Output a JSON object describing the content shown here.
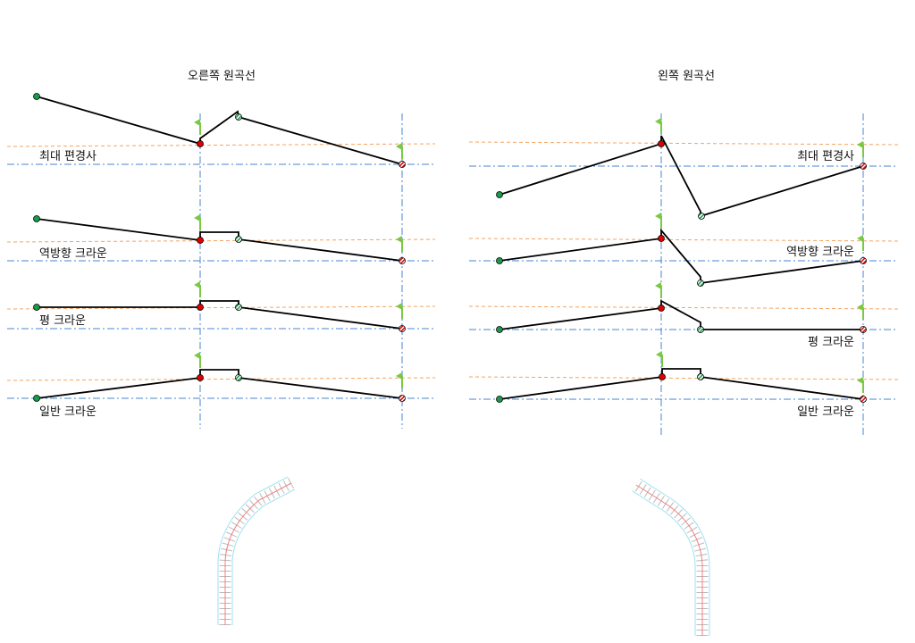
{
  "panels": [
    {
      "title": "오른쪽 원곡선",
      "rows": [
        {
          "label": "최대 편경사"
        },
        {
          "label": "역방향 크라운"
        },
        {
          "label": "평 크라운"
        },
        {
          "label": "일반 크라운"
        }
      ]
    },
    {
      "title": "왼쪽 원곡선",
      "rows": [
        {
          "label": "최대 편경사"
        },
        {
          "label": "역방향 크라운"
        },
        {
          "label": "평 크라운"
        },
        {
          "label": "일반 크라운"
        }
      ]
    }
  ],
  "colors": {
    "profile": "#000000",
    "start_point": "#1a9a4a",
    "curve_point": "#e00000",
    "flag": "#7ac943",
    "baseline": "#4a86d0",
    "target": "#f4a460",
    "road_edge": "#9fe0f0",
    "centerline": "#f08080"
  }
}
